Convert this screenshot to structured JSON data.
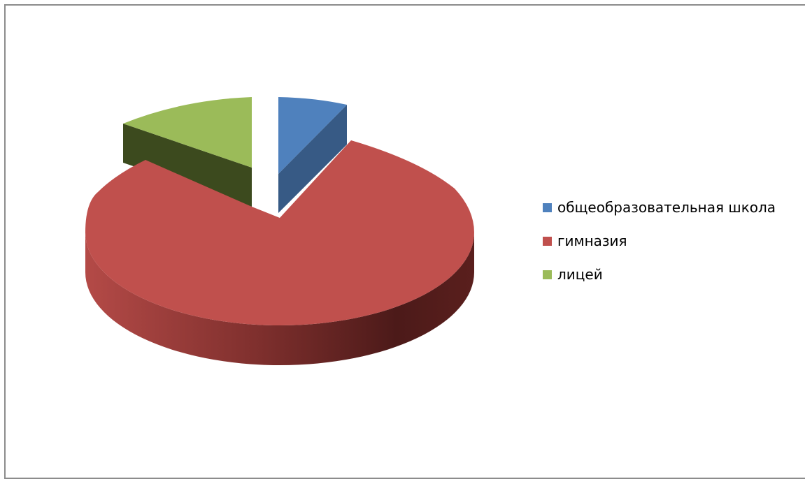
{
  "chart_data": {
    "type": "pie",
    "style": "3d-exploded",
    "title": "",
    "slices": [
      {
        "label": "общеобразовательная школа",
        "value": 7,
        "color": "#4f81bd"
      },
      {
        "label": "гимназия",
        "value": 80,
        "color": "#c0504d"
      },
      {
        "label": "лицей",
        "value": 13,
        "color": "#9bbb59"
      }
    ],
    "legend": {
      "position": "right",
      "items": [
        "общеобразовательная школа",
        "гимназия",
        "лицей"
      ]
    }
  }
}
